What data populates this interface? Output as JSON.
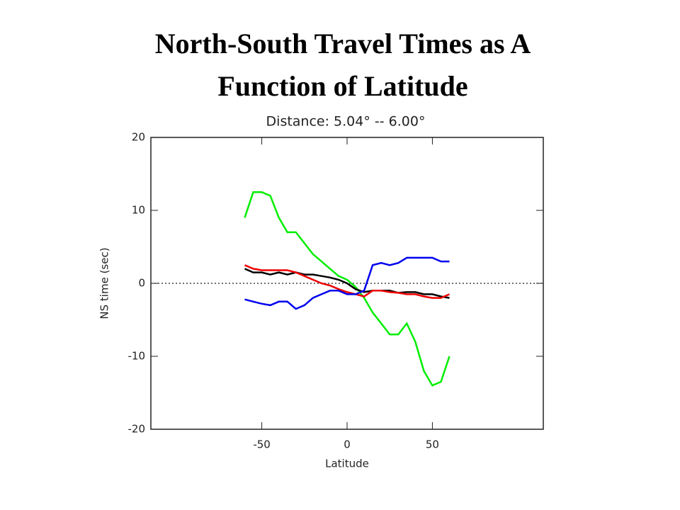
{
  "slide_title": [
    "North-South Travel Times as A",
    "Function of Latitude"
  ],
  "chart_data": {
    "type": "line",
    "title": "Distance: 5.04° -- 6.00°",
    "x_label": "Latitude",
    "y_label": "NS time (sec)",
    "x": [
      -60,
      -55,
      -50,
      -45,
      -40,
      -35,
      -30,
      -25,
      -20,
      -15,
      -10,
      -5,
      0,
      5,
      10,
      15,
      20,
      25,
      30,
      35,
      40,
      45,
      50,
      55,
      60
    ],
    "series": [
      {
        "color": "#00ee00",
        "values": [
          9,
          12.5,
          12.5,
          12,
          9,
          7,
          7,
          5.5,
          4,
          3,
          2,
          1,
          0.5,
          -0.5,
          -2,
          -4,
          -5.5,
          -7,
          -7,
          -5.5,
          -8,
          -12,
          -14,
          -13.5,
          -10
        ]
      },
      {
        "color": "#000000",
        "values": [
          2,
          1.5,
          1.5,
          1.2,
          1.5,
          1.2,
          1.5,
          1.2,
          1.2,
          1,
          0.8,
          0.5,
          0,
          -0.8,
          -1.2,
          -1,
          -1,
          -1,
          -1.3,
          -1.2,
          -1.2,
          -1.5,
          -1.5,
          -1.8,
          -2
        ]
      },
      {
        "color": "#ee0000",
        "values": [
          2.5,
          2,
          1.8,
          1.8,
          1.8,
          1.8,
          1.5,
          1,
          0.5,
          0,
          -0.3,
          -0.8,
          -1.2,
          -1.5,
          -1.8,
          -1,
          -1,
          -1.2,
          -1.3,
          -1.5,
          -1.5,
          -1.8,
          -2,
          -2,
          -1.5
        ]
      },
      {
        "color": "#0000ee",
        "values": [
          -2.2,
          -2.5,
          -2.8,
          -3,
          -2.5,
          -2.5,
          -3.5,
          -3,
          -2,
          -1.5,
          -1,
          -1,
          -1.5,
          -1.5,
          -1,
          2.5,
          2.8,
          2.5,
          2.8,
          3.5,
          3.5,
          3.5,
          3.5,
          3,
          3
        ]
      }
    ],
    "reference_line": 0,
    "xlim": [
      -115,
      115
    ],
    "ylim": [
      -20,
      20
    ],
    "xticks": [
      -50,
      0,
      50
    ],
    "yticks": [
      -20,
      -10,
      0,
      10,
      20
    ]
  }
}
